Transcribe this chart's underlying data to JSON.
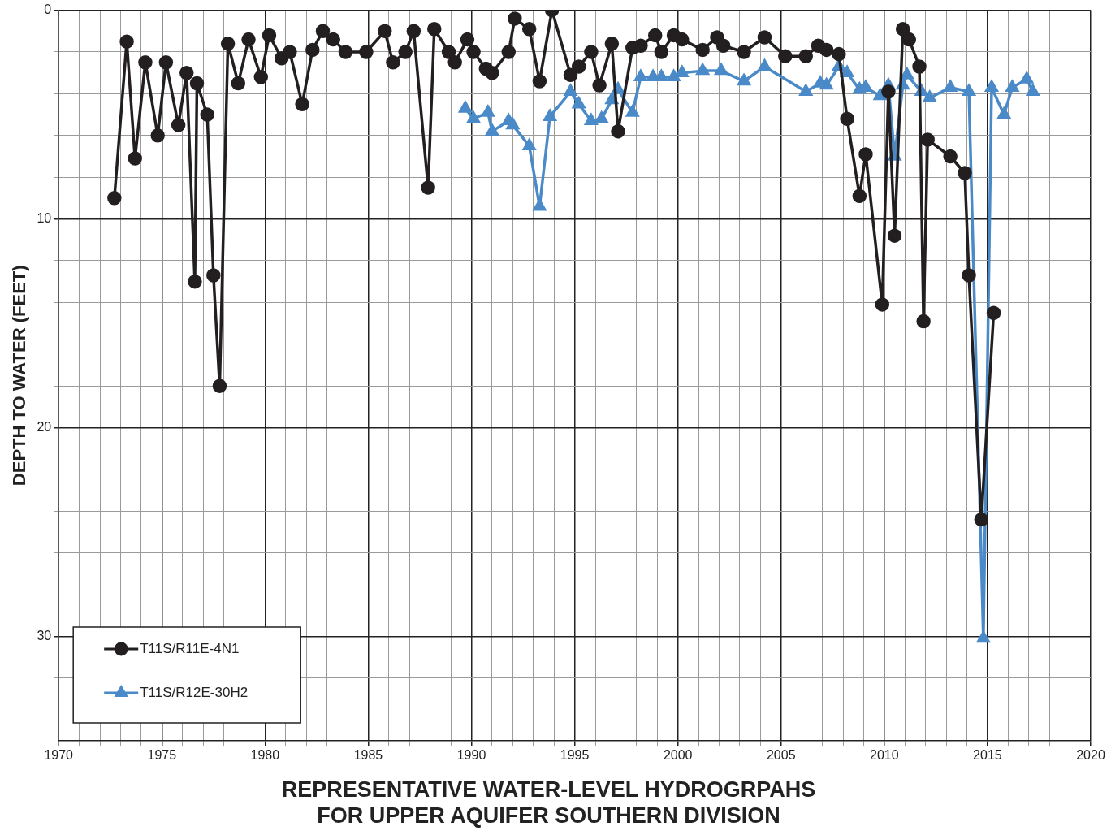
{
  "chart_data": {
    "type": "line",
    "title": [
      "REPRESENTATIVE WATER-LEVEL HYDROGRPAHS",
      "FOR UPPER AQUIFER SOUTHERN DIVISION"
    ],
    "ylabel": "DEPTH TO WATER (FEET)",
    "xlim": [
      1970,
      2020
    ],
    "xticks": [
      1970,
      {
        "value": 1971,
        "label": null
      },
      {
        "value": 1972,
        "label": null
      },
      {
        "value": 1973,
        "label": null
      },
      {
        "value": 1974,
        "label": null
      },
      1975,
      {
        "value": 1976,
        "label": null
      },
      {
        "value": 1977,
        "label": null
      },
      {
        "value": 1978,
        "label": null
      },
      {
        "value": 1979,
        "label": null
      },
      1980,
      {
        "value": 1981,
        "label": null
      },
      {
        "value": 1982,
        "label": null
      },
      {
        "value": 1983,
        "label": null
      },
      {
        "value": 1984,
        "label": null
      },
      1985,
      {
        "value": 1986,
        "label": null
      },
      {
        "value": 1987,
        "label": null
      },
      {
        "value": 1988,
        "label": null
      },
      {
        "value": 1989,
        "label": null
      },
      1990,
      {
        "value": 1991,
        "label": null
      },
      {
        "value": 1992,
        "label": null
      },
      {
        "value": 1993,
        "label": null
      },
      {
        "value": 1994,
        "label": null
      },
      1995,
      {
        "value": 1996,
        "label": null
      },
      {
        "value": 1997,
        "label": null
      },
      {
        "value": 1998,
        "label": null
      },
      {
        "value": 1999,
        "label": null
      },
      2000,
      {
        "value": 2001,
        "label": null
      },
      {
        "value": 2002,
        "label": null
      },
      {
        "value": 2003,
        "label": null
      },
      {
        "value": 2004,
        "label": null
      },
      2005,
      {
        "value": 2006,
        "label": null
      },
      {
        "value": 2007,
        "label": null
      },
      {
        "value": 2008,
        "label": null
      },
      {
        "value": 2009,
        "label": null
      },
      2010,
      {
        "value": 2011,
        "label": null
      },
      {
        "value": 2012,
        "label": null
      },
      {
        "value": 2013,
        "label": null
      },
      {
        "value": 2014,
        "label": null
      },
      2015,
      {
        "value": 2016,
        "label": null
      },
      {
        "value": 2017,
        "label": null
      },
      {
        "value": 2018,
        "label": null
      },
      {
        "value": 2019,
        "label": null
      },
      2020
    ],
    "ylim": [
      35,
      0
    ],
    "yticks": [
      0,
      {
        "value": 2,
        "label": null
      },
      {
        "value": 4,
        "label": null
      },
      {
        "value": 6,
        "label": null
      },
      {
        "value": 8,
        "label": null
      },
      10,
      {
        "value": 12,
        "label": null
      },
      {
        "value": 14,
        "label": null
      },
      {
        "value": 16,
        "label": null
      },
      {
        "value": 18,
        "label": null
      },
      20,
      {
        "value": 22,
        "label": null
      },
      {
        "value": 24,
        "label": null
      },
      {
        "value": 26,
        "label": null
      },
      {
        "value": 28,
        "label": null
      },
      30,
      {
        "value": 32,
        "label": null
      },
      {
        "value": 34,
        "label": null
      }
    ],
    "grid": true,
    "legend": "bottom left",
    "line_style": "solid",
    "series": [
      {
        "name": "T11S/R11E-4N1",
        "color": "#231f20",
        "marker": "circle",
        "x": [
          1972.7,
          1973.3,
          1973.7,
          1974.2,
          1974.8,
          1975.2,
          1975.8,
          1976.2,
          1976.6,
          1976.7,
          1977.2,
          1977.5,
          1977.8,
          1978.2,
          1978.7,
          1979.2,
          1979.8,
          1980.2,
          1980.8,
          1981.2,
          1981.8,
          1982.3,
          1982.8,
          1983.3,
          1983.9,
          1984.9,
          1985.8,
          1986.2,
          1986.8,
          1987.2,
          1987.9,
          1988.2,
          1988.9,
          1989.2,
          1989.8,
          1990.1,
          1990.7,
          1991.0,
          1991.8,
          1992.1,
          1992.8,
          1993.3,
          1993.9,
          1994.8,
          1995.2,
          1995.8,
          1996.2,
          1996.8,
          1997.1,
          1997.8,
          1998.2,
          1998.9,
          1999.2,
          1999.8,
          2000.2,
          2001.2,
          2001.9,
          2002.2,
          2003.2,
          2004.2,
          2005.2,
          2006.2,
          2006.8,
          2007.2,
          2007.8,
          2008.2,
          2008.8,
          2009.1,
          2009.9,
          2010.2,
          2010.5,
          2010.9,
          2011.2,
          2011.7,
          2011.9,
          2012.1,
          2013.2,
          2013.9,
          2014.1,
          2014.7,
          2015.3
        ],
        "values": [
          9.0,
          1.5,
          7.1,
          2.5,
          6.0,
          2.5,
          5.5,
          3.0,
          13.0,
          3.5,
          5.0,
          12.7,
          18.0,
          1.6,
          3.5,
          1.4,
          3.2,
          1.2,
          2.3,
          2.0,
          4.5,
          1.9,
          1.0,
          1.4,
          2.0,
          2.0,
          1.0,
          2.5,
          2.0,
          1.0,
          8.5,
          0.9,
          2.0,
          2.5,
          1.4,
          2.0,
          2.8,
          3.0,
          2.0,
          0.4,
          0.9,
          3.4,
          0,
          3.1,
          2.7,
          2.0,
          3.6,
          1.6,
          5.8,
          1.8,
          1.7,
          1.2,
          2.0,
          1.2,
          1.4,
          1.9,
          1.3,
          1.7,
          2.0,
          1.3,
          2.2,
          2.2,
          1.7,
          1.9,
          2.1,
          5.2,
          8.9,
          6.9,
          14.1,
          3.9,
          10.8,
          0.9,
          1.4,
          2.7,
          14.9,
          6.2,
          7.0,
          7.8,
          12.7,
          24.4,
          14.5
        ]
      },
      {
        "name": "T11S/R12E-30H2",
        "color": "#4a8ac8",
        "marker": "triangle",
        "x": [
          1989.7,
          1990.1,
          1990.8,
          1991.0,
          1991.8,
          1992.0,
          1992.8,
          1993.3,
          1993.8,
          1994.8,
          1995.2,
          1995.8,
          1996.3,
          1996.8,
          1997.1,
          1997.8,
          1998.2,
          1998.8,
          1999.2,
          1999.8,
          2000.2,
          2001.2,
          2002.1,
          2003.2,
          2004.2,
          2006.2,
          2006.9,
          2007.2,
          2007.8,
          2008.2,
          2008.8,
          2009.1,
          2009.8,
          2010.2,
          2010.5,
          2010.9,
          2011.1,
          2011.8,
          2012.2,
          2013.2,
          2014.1,
          2014.8,
          2015.2,
          2015.8,
          2016.2,
          2016.9,
          2017.2
        ],
        "values": [
          4.7,
          5.2,
          4.9,
          5.8,
          5.3,
          5.5,
          6.5,
          9.4,
          5.1,
          3.9,
          4.5,
          5.3,
          5.2,
          4.3,
          3.8,
          4.9,
          3.2,
          3.2,
          3.2,
          3.2,
          3.0,
          2.9,
          2.9,
          3.4,
          2.7,
          3.9,
          3.5,
          3.6,
          2.7,
          3.0,
          3.8,
          3.7,
          4.1,
          3.6,
          7.0,
          3.6,
          3.1,
          3.9,
          4.2,
          3.7,
          3.9,
          30.1,
          3.7,
          5.0,
          3.7,
          3.3,
          3.9
        ]
      }
    ]
  }
}
